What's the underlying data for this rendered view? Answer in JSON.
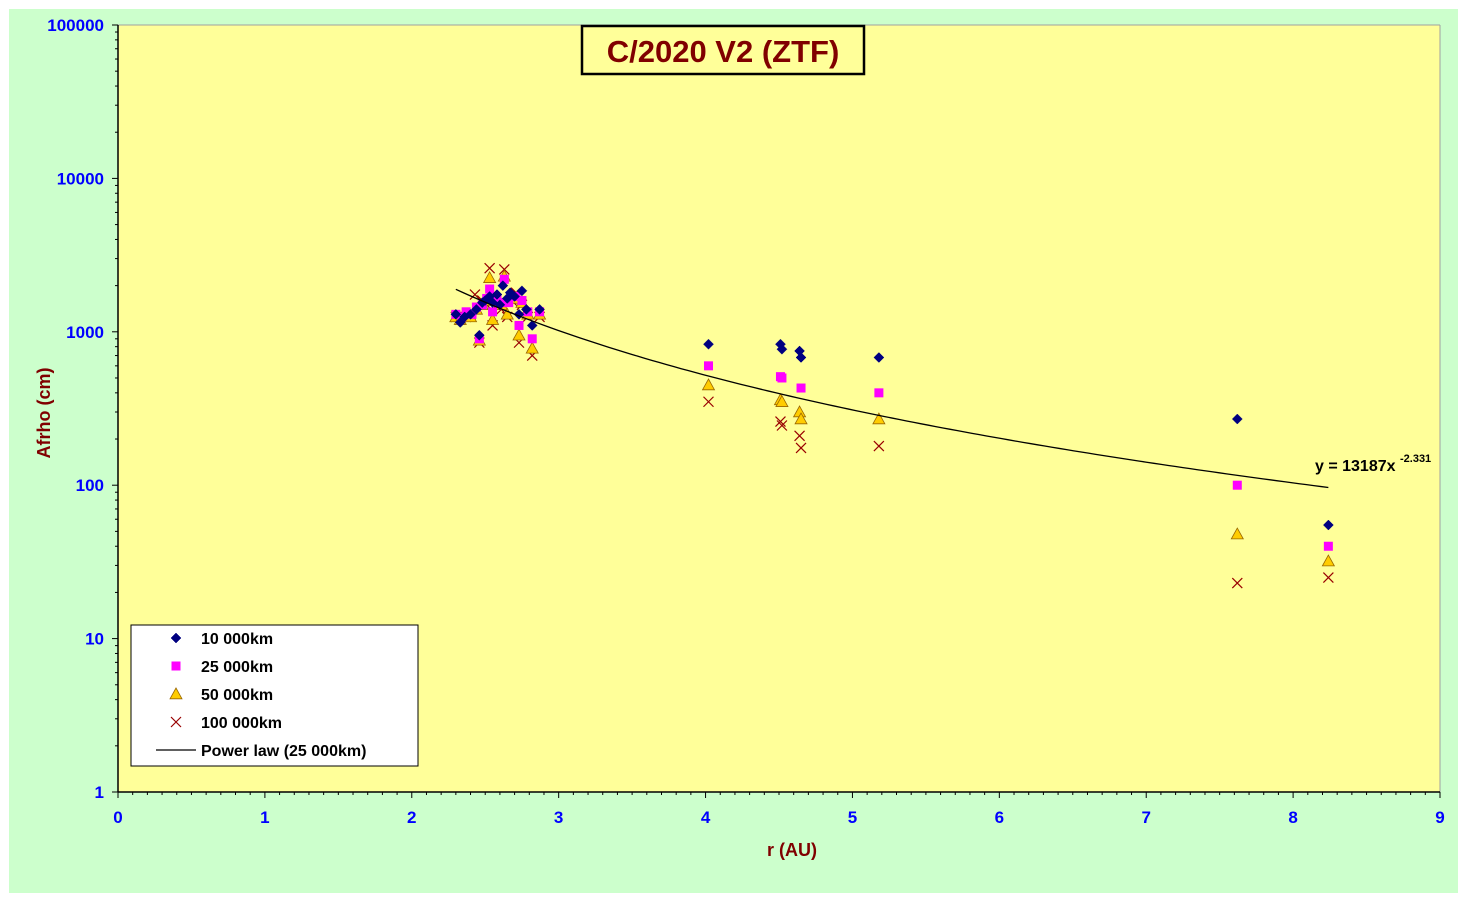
{
  "chart_data": {
    "type": "scatter",
    "title": "C/2020 V2 (ZTF)",
    "xlabel": "r (AU)",
    "ylabel": "Afrho (cm)",
    "xlim": [
      0,
      9
    ],
    "ylim": [
      1,
      100000
    ],
    "yscale": "log",
    "x_ticks": [
      "0",
      "1",
      "2",
      "3",
      "4",
      "5",
      "6",
      "7",
      "8",
      "9"
    ],
    "y_ticks": [
      "1",
      "10",
      "100",
      "1000",
      "10000",
      "100000"
    ],
    "grid": false,
    "legend_position": "bottom-left",
    "colors": {
      "page_background": "#ccffcc",
      "plot_background": "#ffff99",
      "tick_label": "#0000ff",
      "axis_title": "#800000",
      "title_text": "#800000"
    },
    "series": [
      {
        "name": "10 000km",
        "marker": "diamond",
        "color": "#000080",
        "points": [
          [
            2.3,
            1300
          ],
          [
            2.33,
            1150
          ],
          [
            2.36,
            1250
          ],
          [
            2.4,
            1300
          ],
          [
            2.44,
            1400
          ],
          [
            2.46,
            950
          ],
          [
            2.48,
            1550
          ],
          [
            2.5,
            1600
          ],
          [
            2.53,
            1700
          ],
          [
            2.55,
            1550
          ],
          [
            2.58,
            1750
          ],
          [
            2.6,
            1500
          ],
          [
            2.62,
            2000
          ],
          [
            2.65,
            1650
          ],
          [
            2.67,
            1800
          ],
          [
            2.7,
            1700
          ],
          [
            2.73,
            1300
          ],
          [
            2.75,
            1850
          ],
          [
            2.78,
            1400
          ],
          [
            2.82,
            1100
          ],
          [
            2.87,
            1400
          ],
          [
            4.02,
            830
          ],
          [
            4.51,
            830
          ],
          [
            4.52,
            770
          ],
          [
            4.64,
            750
          ],
          [
            4.65,
            680
          ],
          [
            5.18,
            680
          ],
          [
            7.62,
            270
          ],
          [
            8.24,
            55
          ]
        ]
      },
      {
        "name": "25 000km",
        "marker": "square",
        "color": "#ff00ff",
        "points": [
          [
            2.3,
            1300
          ],
          [
            2.34,
            1250
          ],
          [
            2.37,
            1350
          ],
          [
            2.41,
            1300
          ],
          [
            2.44,
            1450
          ],
          [
            2.46,
            900
          ],
          [
            2.48,
            1500
          ],
          [
            2.51,
            1650
          ],
          [
            2.53,
            1900
          ],
          [
            2.55,
            1350
          ],
          [
            2.58,
            1650
          ],
          [
            2.61,
            1550
          ],
          [
            2.63,
            2200
          ],
          [
            2.66,
            1550
          ],
          [
            2.68,
            1700
          ],
          [
            2.71,
            1700
          ],
          [
            2.73,
            1100
          ],
          [
            2.75,
            1600
          ],
          [
            2.79,
            1350
          ],
          [
            2.82,
            900
          ],
          [
            2.87,
            1350
          ],
          [
            4.02,
            600
          ],
          [
            4.51,
            510
          ],
          [
            4.52,
            500
          ],
          [
            4.65,
            430
          ],
          [
            5.18,
            400
          ],
          [
            7.62,
            100
          ],
          [
            8.24,
            40
          ]
        ]
      },
      {
        "name": "50 000km",
        "marker": "triangle",
        "color": "#ffcc00",
        "points": [
          [
            2.3,
            1250
          ],
          [
            2.33,
            1200
          ],
          [
            2.37,
            1300
          ],
          [
            2.4,
            1250
          ],
          [
            2.44,
            1400
          ],
          [
            2.46,
            880
          ],
          [
            2.48,
            1500
          ],
          [
            2.51,
            1600
          ],
          [
            2.53,
            2250
          ],
          [
            2.55,
            1200
          ],
          [
            2.58,
            1600
          ],
          [
            2.61,
            1500
          ],
          [
            2.63,
            2300
          ],
          [
            2.65,
            1300
          ],
          [
            2.68,
            1650
          ],
          [
            2.71,
            1650
          ],
          [
            2.73,
            950
          ],
          [
            2.75,
            1550
          ],
          [
            2.79,
            1300
          ],
          [
            2.82,
            780
          ],
          [
            2.87,
            1300
          ],
          [
            4.02,
            450
          ],
          [
            4.51,
            360
          ],
          [
            4.52,
            350
          ],
          [
            4.64,
            300
          ],
          [
            4.65,
            270
          ],
          [
            5.18,
            270
          ],
          [
            7.62,
            48
          ],
          [
            8.24,
            32
          ]
        ]
      },
      {
        "name": "100 000km",
        "marker": "x",
        "color": "#990000",
        "points": [
          [
            2.3,
            1250
          ],
          [
            2.33,
            1200
          ],
          [
            2.37,
            1250
          ],
          [
            2.4,
            1300
          ],
          [
            2.43,
            1750
          ],
          [
            2.46,
            850
          ],
          [
            2.48,
            1600
          ],
          [
            2.51,
            1500
          ],
          [
            2.53,
            2600
          ],
          [
            2.55,
            1100
          ],
          [
            2.58,
            1500
          ],
          [
            2.61,
            1400
          ],
          [
            2.63,
            2550
          ],
          [
            2.65,
            1250
          ],
          [
            2.68,
            1600
          ],
          [
            2.71,
            1800
          ],
          [
            2.73,
            850
          ],
          [
            2.75,
            1500
          ],
          [
            2.79,
            1250
          ],
          [
            2.82,
            700
          ],
          [
            2.87,
            1250
          ],
          [
            4.02,
            350
          ],
          [
            4.51,
            260
          ],
          [
            4.52,
            245
          ],
          [
            4.64,
            210
          ],
          [
            4.65,
            175
          ],
          [
            5.18,
            180
          ],
          [
            7.62,
            23
          ],
          [
            8.24,
            25
          ]
        ]
      },
      {
        "name": "Power law (25 000km)",
        "type": "line",
        "color": "#000000",
        "coefficient": 13187,
        "exponent": -2.331,
        "x_range": [
          2.3,
          8.24
        ]
      }
    ],
    "annotations": [
      {
        "text": "y = 13187x",
        "superscript": "-2.331"
      }
    ]
  }
}
